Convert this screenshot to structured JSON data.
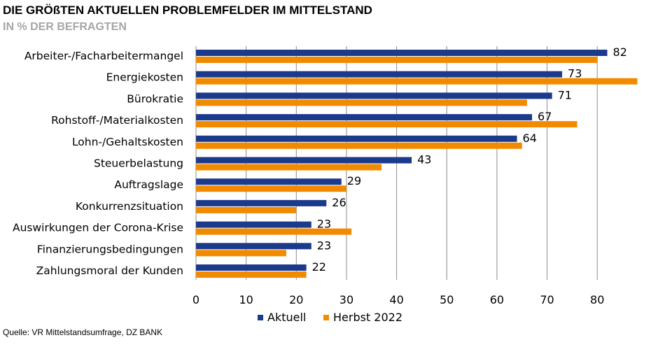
{
  "title": "DIE GRÖßTEN AKTUELLEN PROBLEMFELDER IM MITTELSTAND",
  "subtitle": "IN % DER BEFRAGTEN",
  "source": "Quelle: VR Mittelstandsumfrage, DZ BANK",
  "chart_data": {
    "type": "bar",
    "orientation": "horizontal",
    "categories": [
      "Arbeiter-/Facharbeitermangel",
      "Energiekosten",
      "Bürokratie",
      "Rohstoff-/Materialkosten",
      "Lohn-/Gehaltskosten",
      "Steuerbelastung",
      "Auftragslage",
      "Konkurrenzsituation",
      "Auswirkungen der Corona-Krise",
      "Finanzierungsbedingungen",
      "Zahlungsmoral der Kunden"
    ],
    "series": [
      {
        "name": "Aktuell",
        "color": "#1b3a8c",
        "values": [
          82,
          73,
          71,
          67,
          64,
          43,
          29,
          26,
          23,
          23,
          22
        ],
        "labels_shown": true
      },
      {
        "name": "Herbst 2022",
        "color": "#f28a00",
        "values": [
          80,
          88,
          66,
          76,
          65,
          37,
          30,
          20,
          31,
          18,
          22
        ],
        "labels_shown": false
      }
    ],
    "xlim": [
      0,
      88
    ],
    "xticks": [
      0,
      10,
      20,
      30,
      40,
      50,
      60,
      70,
      80
    ],
    "grid": "vertical",
    "legend": "bottom"
  }
}
